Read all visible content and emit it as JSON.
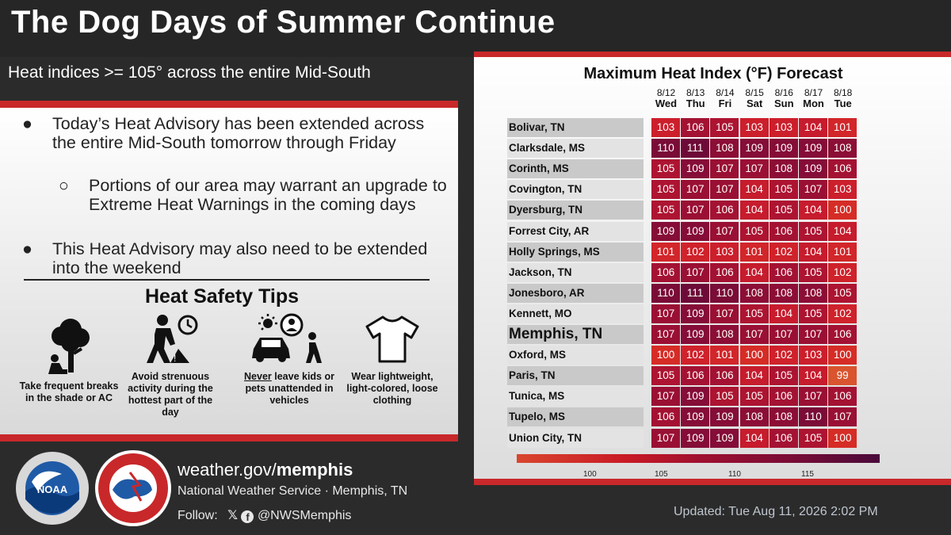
{
  "header": {
    "title": "The Dog Days of Summer Continue",
    "subtitle": "Heat indices >= 105° across the entire Mid-South"
  },
  "bullets": [
    {
      "mark": "●",
      "text": "Today’s Heat Advisory has been extended across the entire Mid-South tomorrow through Friday"
    },
    {
      "mark": "○",
      "text": "Portions of our area may warrant an upgrade to Extreme Heat Warnings in the coming days"
    },
    {
      "mark": "●",
      "text": "This Heat Advisory may also need to be extended into the weekend"
    }
  ],
  "tips": {
    "title": "Heat Safety Tips",
    "items": [
      {
        "icon": "tree-shade-icon",
        "text": "Take frequent breaks in the shade or AC"
      },
      {
        "icon": "worker-clock-icon",
        "text": "Avoid strenuous activity during the hottest part of the day"
      },
      {
        "icon": "car-child-icon",
        "emph": "Never",
        "text": " leave kids or pets unattended in vehicles"
      },
      {
        "icon": "tshirt-icon",
        "text": "Wear lightweight, light-colored, loose clothing"
      }
    ]
  },
  "footer": {
    "url_prefix": "weather.gov/",
    "url_bold": "memphis",
    "org": "National Weather Service · Memphis, TN",
    "follow_label": "Follow:",
    "handle": "@NWSMemphis",
    "updated": "Updated: Tue Aug 11, 2026 2:02 PM"
  },
  "table": {
    "title": "Maximum Heat Index (°F) Forecast",
    "days": [
      {
        "date": "8/12",
        "dow": "Wed"
      },
      {
        "date": "8/13",
        "dow": "Thu"
      },
      {
        "date": "8/14",
        "dow": "Fri"
      },
      {
        "date": "8/15",
        "dow": "Sat"
      },
      {
        "date": "8/16",
        "dow": "Sun"
      },
      {
        "date": "8/17",
        "dow": "Mon"
      },
      {
        "date": "8/18",
        "dow": "Tue"
      }
    ],
    "rows": [
      {
        "city": "Bolivar, TN",
        "values": [
          103,
          106,
          105,
          103,
          103,
          104,
          101
        ]
      },
      {
        "city": "Clarksdale, MS",
        "values": [
          110,
          111,
          108,
          109,
          109,
          109,
          108
        ]
      },
      {
        "city": "Corinth, MS",
        "values": [
          105,
          109,
          107,
          107,
          108,
          109,
          106
        ]
      },
      {
        "city": "Covington, TN",
        "values": [
          105,
          107,
          107,
          104,
          105,
          107,
          103
        ]
      },
      {
        "city": "Dyersburg, TN",
        "values": [
          105,
          107,
          106,
          104,
          105,
          104,
          100
        ]
      },
      {
        "city": "Forrest City, AR",
        "values": [
          109,
          109,
          107,
          105,
          106,
          105,
          104
        ]
      },
      {
        "city": "Holly Springs, MS",
        "values": [
          101,
          102,
          103,
          101,
          102,
          104,
          101
        ]
      },
      {
        "city": "Jackson, TN",
        "values": [
          106,
          107,
          106,
          104,
          106,
          105,
          102
        ]
      },
      {
        "city": "Jonesboro, AR",
        "values": [
          110,
          111,
          110,
          108,
          108,
          108,
          105
        ]
      },
      {
        "city": "Kennett, MO",
        "values": [
          107,
          109,
          107,
          105,
          104,
          105,
          102
        ]
      },
      {
        "city": "Memphis, TN",
        "values": [
          107,
          109,
          108,
          107,
          107,
          107,
          106
        ],
        "big": true
      },
      {
        "city": "Oxford, MS",
        "values": [
          100,
          102,
          101,
          100,
          102,
          103,
          100
        ]
      },
      {
        "city": "Paris, TN",
        "values": [
          105,
          106,
          106,
          104,
          105,
          104,
          99
        ]
      },
      {
        "city": "Tunica, MS",
        "values": [
          107,
          109,
          105,
          105,
          106,
          107,
          106
        ]
      },
      {
        "city": "Tupelo, MS",
        "values": [
          106,
          109,
          109,
          108,
          108,
          110,
          107
        ]
      },
      {
        "city": "Union City, TN",
        "values": [
          107,
          109,
          109,
          104,
          106,
          105,
          100
        ]
      }
    ],
    "legend_ticks": [
      "100",
      "105",
      "110",
      "115"
    ],
    "colors": {
      "99": "#d9542f",
      "100": "#d62c26",
      "101": "#d2262a",
      "102": "#cf222b",
      "103": "#cc1f2c",
      "104": "#c61c2d",
      "105": "#ad1431",
      "106": "#a41233",
      "107": "#9a1034",
      "108": "#8c0e36",
      "109": "#850d37",
      "110": "#7a0c37",
      "111": "#6e0a38"
    }
  }
}
